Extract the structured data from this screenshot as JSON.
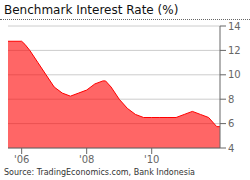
{
  "chart_data": {
    "type": "area",
    "title": "Benchmark Interest Rate (%)",
    "source": "Source: TradingEconomics.com, Bank Indonesia",
    "color": "#ff0000",
    "x": [
      2005.58,
      2006.0,
      2006.1,
      2006.25,
      2006.5,
      2006.75,
      2007.0,
      2007.25,
      2007.5,
      2007.75,
      2008.0,
      2008.25,
      2008.5,
      2008.58,
      2008.75,
      2009.0,
      2009.25,
      2009.5,
      2009.75,
      2010.0,
      2010.25,
      2010.5,
      2010.75,
      2011.0,
      2011.25,
      2011.5,
      2011.75,
      2012.0,
      2012.1
    ],
    "values": [
      12.75,
      12.75,
      12.5,
      12.0,
      11.0,
      10.0,
      9.0,
      8.5,
      8.25,
      8.5,
      8.75,
      9.25,
      9.5,
      9.5,
      9.0,
      8.0,
      7.25,
      6.75,
      6.5,
      6.5,
      6.5,
      6.5,
      6.5,
      6.75,
      7.0,
      6.75,
      6.5,
      5.75,
      5.75
    ],
    "xlim": [
      2005.58,
      2012.1
    ],
    "xticks": [
      {
        "value": 2006.0,
        "label": "'06"
      },
      {
        "value": 2008.0,
        "label": "'08"
      },
      {
        "value": 2010.0,
        "label": "'10"
      }
    ],
    "ylim": [
      4,
      14
    ],
    "yticks": [
      4,
      6,
      8,
      10,
      12,
      14
    ],
    "grid": "y"
  }
}
